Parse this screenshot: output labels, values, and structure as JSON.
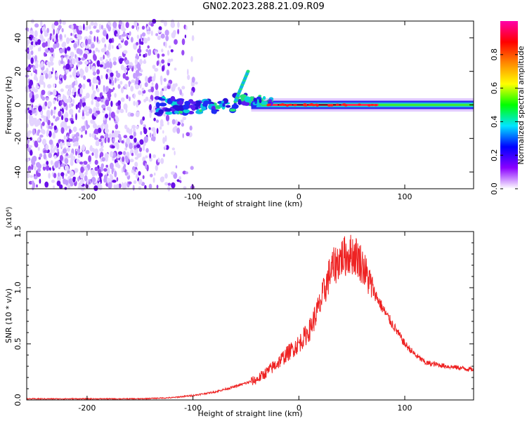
{
  "chart_data": [
    {
      "type": "heatmap",
      "title": "GN02.2023.288.21.09.R09",
      "xlabel": "Height of straight line (km)",
      "ylabel": "Frequency (Hz)",
      "xlim": [
        -257,
        165
      ],
      "ylim": [
        -50,
        50
      ],
      "xticks": [
        -200,
        -100,
        0,
        100
      ],
      "yticks": [
        -40,
        -20,
        0,
        20,
        40
      ],
      "colorbar": {
        "label": "Normalized spectral amplitude",
        "range": [
          0,
          1
        ],
        "ticks": [
          "0.0",
          "0.2",
          "0.4",
          "0.6",
          "0.8"
        ],
        "colormap": [
          "#ffffff",
          "#8a00ff",
          "#0000ff",
          "#00e5ff",
          "#00ff00",
          "#ffff00",
          "#ff8800",
          "#ff0000",
          "#ff00aa"
        ]
      },
      "features": {
        "noise_region_x": [
          -257,
          -120
        ],
        "signal_x": [
          -130,
          165
        ],
        "signal_frequency_hz": 0,
        "strong_peak_x": [
          -30,
          75
        ]
      }
    },
    {
      "type": "line",
      "xlabel": "Height of straight line (km)",
      "ylabel": "SNR (10 * v/v)",
      "yunit": "(x10⁴)",
      "xlim": [
        -257,
        165
      ],
      "ylim": [
        0,
        1.5
      ],
      "xticks": [
        -200,
        -100,
        0,
        100
      ],
      "yticks": [
        "0.0",
        "0.5",
        "1.0",
        "1.5"
      ],
      "color": "#ee2222",
      "series": [
        {
          "x": [
            -257,
            -200,
            -150,
            -120,
            -100,
            -80,
            -60,
            -40,
            -30,
            -20,
            -10,
            0,
            10,
            20,
            25,
            30,
            40,
            50,
            55,
            60,
            70,
            80,
            90,
            100,
            110,
            120,
            140,
            165
          ],
          "y": [
            0.01,
            0.01,
            0.01,
            0.02,
            0.04,
            0.07,
            0.12,
            0.18,
            0.25,
            0.33,
            0.42,
            0.5,
            0.62,
            0.85,
            1.0,
            1.15,
            1.27,
            1.3,
            1.28,
            1.2,
            0.98,
            0.8,
            0.65,
            0.5,
            0.4,
            0.33,
            0.3,
            0.27
          ]
        }
      ]
    }
  ]
}
